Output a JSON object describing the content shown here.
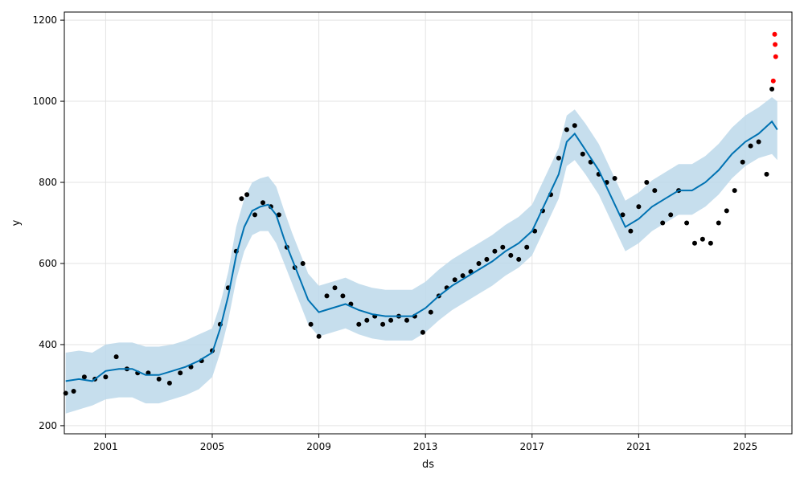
{
  "chart_data": {
    "type": "line",
    "title": "",
    "xlabel": "ds",
    "ylabel": "y",
    "xlim": [
      1999.45,
      2026.75
    ],
    "ylim": [
      180,
      1220
    ],
    "x_ticks": [
      {
        "value": 2001.0,
        "label": "2001"
      },
      {
        "value": 2005.0,
        "label": "2005"
      },
      {
        "value": 2009.0,
        "label": "2009"
      },
      {
        "value": 2013.0,
        "label": "2013"
      },
      {
        "value": 2017.0,
        "label": "2017"
      },
      {
        "value": 2021.0,
        "label": "2021"
      },
      {
        "value": 2025.0,
        "label": "2025"
      }
    ],
    "y_ticks": [
      {
        "value": 200,
        "label": "200"
      },
      {
        "value": 400,
        "label": "400"
      },
      {
        "value": 600,
        "label": "600"
      },
      {
        "value": 800,
        "label": "800"
      },
      {
        "value": 1000,
        "label": "1000"
      },
      {
        "value": 1200,
        "label": "1200"
      }
    ],
    "grid": true,
    "colors": {
      "observed": "#000000",
      "forecast": "#0072b2",
      "interval": "#bcd8ea",
      "outlier": "#ff0000",
      "grid": "#e3e3e3"
    },
    "series": [
      {
        "role": "observed",
        "kind": "scatter",
        "x": [
          1999.5,
          1999.8,
          2000.2,
          2000.6,
          2001.0,
          2001.4,
          2001.8,
          2002.2,
          2002.6,
          2003.0,
          2003.4,
          2003.8,
          2004.2,
          2004.6,
          2005.0,
          2005.3,
          2005.6,
          2005.9,
          2006.1,
          2006.3,
          2006.6,
          2006.9,
          2007.2,
          2007.5,
          2007.8,
          2008.1,
          2008.4,
          2008.7,
          2009.0,
          2009.3,
          2009.6,
          2009.9,
          2010.2,
          2010.5,
          2010.8,
          2011.1,
          2011.4,
          2011.7,
          2012.0,
          2012.3,
          2012.6,
          2012.9,
          2013.2,
          2013.5,
          2013.8,
          2014.1,
          2014.4,
          2014.7,
          2015.0,
          2015.3,
          2015.6,
          2015.9,
          2016.2,
          2016.5,
          2016.8,
          2017.1,
          2017.4,
          2017.7,
          2018.0,
          2018.3,
          2018.6,
          2018.9,
          2019.2,
          2019.5,
          2019.8,
          2020.1,
          2020.4,
          2020.7,
          2021.0,
          2021.3,
          2021.6,
          2021.9,
          2022.2,
          2022.5,
          2022.8,
          2023.1,
          2023.4,
          2023.7,
          2024.0,
          2024.3,
          2024.6,
          2024.9,
          2025.2,
          2025.5,
          2025.8,
          2026.0
        ],
        "y": [
          280,
          285,
          320,
          315,
          320,
          370,
          340,
          330,
          330,
          315,
          305,
          330,
          345,
          360,
          385,
          450,
          540,
          630,
          760,
          770,
          720,
          750,
          740,
          720,
          640,
          590,
          600,
          450,
          420,
          520,
          540,
          520,
          500,
          450,
          460,
          470,
          450,
          460,
          470,
          460,
          470,
          430,
          480,
          520,
          540,
          560,
          570,
          580,
          600,
          610,
          630,
          640,
          620,
          610,
          640,
          680,
          730,
          770,
          860,
          930,
          940,
          870,
          850,
          820,
          800,
          810,
          720,
          680,
          740,
          800,
          780,
          700,
          720,
          780,
          700,
          650,
          660,
          650,
          700,
          730,
          780,
          850,
          890,
          900,
          820,
          1030
        ]
      },
      {
        "role": "forecast",
        "kind": "line",
        "x": [
          1999.5,
          2000.0,
          2000.5,
          2001.0,
          2001.5,
          2002.0,
          2002.5,
          2003.0,
          2003.5,
          2004.0,
          2004.5,
          2005.0,
          2005.3,
          2005.6,
          2005.9,
          2006.2,
          2006.5,
          2006.8,
          2007.1,
          2007.4,
          2007.7,
          2008.0,
          2008.3,
          2008.6,
          2009.0,
          2009.5,
          2010.0,
          2010.5,
          2011.0,
          2011.5,
          2012.0,
          2012.5,
          2013.0,
          2013.5,
          2014.0,
          2014.5,
          2015.0,
          2015.5,
          2016.0,
          2016.5,
          2017.0,
          2017.5,
          2018.0,
          2018.3,
          2018.6,
          2019.0,
          2019.5,
          2020.0,
          2020.5,
          2021.0,
          2021.5,
          2022.0,
          2022.5,
          2023.0,
          2023.5,
          2024.0,
          2024.5,
          2025.0,
          2025.5,
          2026.0,
          2026.2
        ],
        "y": [
          310,
          315,
          310,
          335,
          340,
          340,
          325,
          325,
          335,
          345,
          360,
          380,
          440,
          520,
          620,
          690,
          730,
          740,
          745,
          720,
          660,
          610,
          560,
          510,
          480,
          490,
          500,
          485,
          475,
          470,
          470,
          470,
          490,
          520,
          545,
          565,
          585,
          605,
          630,
          650,
          680,
          750,
          820,
          900,
          920,
          880,
          830,
          760,
          690,
          710,
          740,
          760,
          780,
          780,
          800,
          830,
          870,
          900,
          920,
          950,
          930
        ]
      },
      {
        "role": "outlier",
        "kind": "scatter",
        "x": [
          2026.05,
          2026.1,
          2026.12,
          2026.14
        ],
        "y": [
          1050,
          1165,
          1140,
          1110
        ]
      }
    ],
    "uncertainty": {
      "x": [
        1999.5,
        2000.0,
        2000.5,
        2001.0,
        2001.5,
        2002.0,
        2002.5,
        2003.0,
        2003.5,
        2004.0,
        2004.5,
        2005.0,
        2005.3,
        2005.6,
        2005.9,
        2006.2,
        2006.5,
        2006.8,
        2007.1,
        2007.4,
        2007.7,
        2008.0,
        2008.3,
        2008.6,
        2009.0,
        2009.5,
        2010.0,
        2010.5,
        2011.0,
        2011.5,
        2012.0,
        2012.5,
        2013.0,
        2013.5,
        2014.0,
        2014.5,
        2015.0,
        2015.5,
        2016.0,
        2016.5,
        2017.0,
        2017.5,
        2018.0,
        2018.3,
        2018.6,
        2019.0,
        2019.5,
        2020.0,
        2020.5,
        2021.0,
        2021.5,
        2022.0,
        2022.5,
        2023.0,
        2023.5,
        2024.0,
        2024.5,
        2025.0,
        2025.5,
        2026.0,
        2026.2
      ],
      "lower": [
        230,
        240,
        250,
        265,
        270,
        270,
        255,
        255,
        265,
        275,
        290,
        320,
        380,
        460,
        560,
        630,
        670,
        680,
        680,
        650,
        600,
        550,
        500,
        450,
        420,
        430,
        440,
        425,
        415,
        410,
        410,
        410,
        430,
        460,
        485,
        505,
        525,
        545,
        570,
        590,
        620,
        690,
        760,
        840,
        855,
        820,
        770,
        700,
        630,
        650,
        680,
        700,
        720,
        720,
        740,
        770,
        810,
        840,
        860,
        870,
        855
      ],
      "upper": [
        380,
        385,
        380,
        400,
        405,
        405,
        395,
        395,
        400,
        410,
        425,
        440,
        500,
        580,
        690,
        760,
        800,
        810,
        815,
        790,
        730,
        675,
        625,
        575,
        545,
        555,
        565,
        550,
        540,
        535,
        535,
        535,
        555,
        585,
        610,
        630,
        650,
        670,
        695,
        715,
        745,
        815,
        885,
        965,
        980,
        945,
        895,
        825,
        755,
        775,
        805,
        825,
        845,
        845,
        865,
        895,
        935,
        965,
        985,
        1010,
        1000
      ]
    }
  }
}
